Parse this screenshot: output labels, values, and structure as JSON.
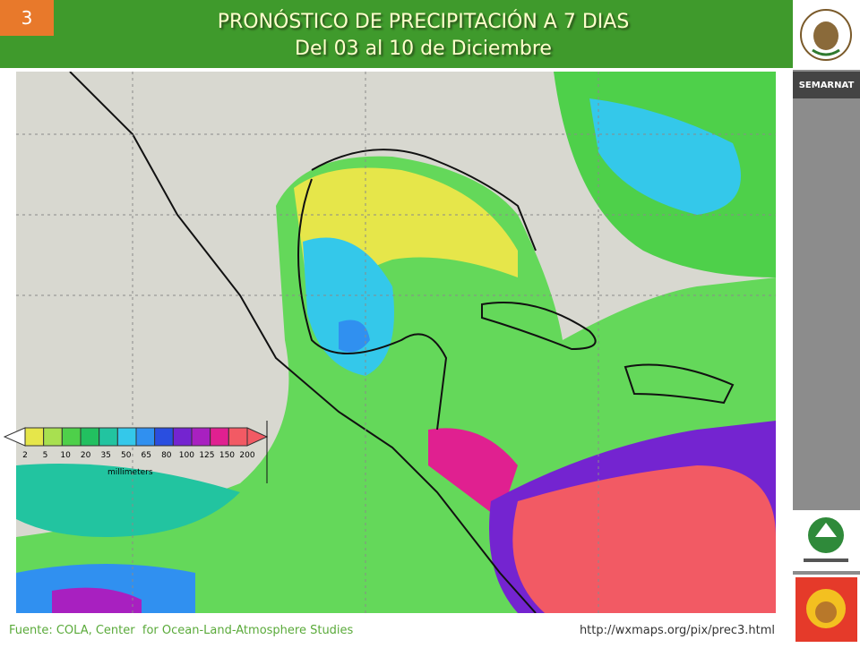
{
  "slide_number": "3",
  "header": {
    "title": "PRONÓSTICO DE PRECIPITACIÓN A 7 DIAS",
    "subtitle": "Del 03 al 10 de Diciembre"
  },
  "sidebar": {
    "agency": "SEMARNAT"
  },
  "legend": {
    "ticks": [
      2,
      5,
      10,
      20,
      35,
      50,
      65,
      80,
      100,
      125,
      150,
      200
    ],
    "colors": [
      "#e6e64a",
      "#a8e050",
      "#4ed04a",
      "#22c060",
      "#22c4a0",
      "#34c8ea",
      "#3090f0",
      "#2a4ee0",
      "#7424d0",
      "#a820c0",
      "#e02090",
      "#f25a64"
    ],
    "unit": "millimeters"
  },
  "footer": {
    "source": "Fuente: COLA, Center  for Ocean-Land-Atmosphere Studies",
    "url": "http://wxmaps.org/pix/prec3.html"
  }
}
